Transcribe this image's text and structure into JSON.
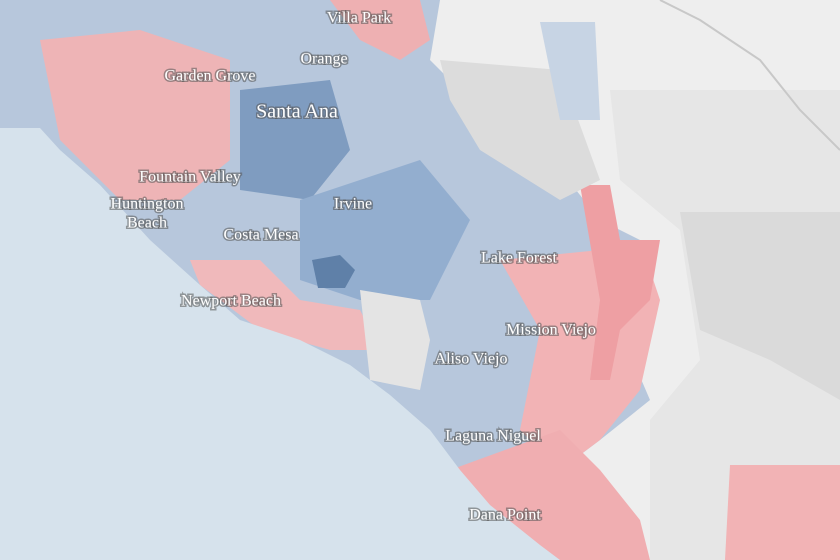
{
  "map": {
    "labels": [
      {
        "text": "Villa Park"
      },
      {
        "text": "Orange"
      },
      {
        "text": "Garden Grove"
      },
      {
        "text": "Santa Ana"
      },
      {
        "text": "Fountain Valley"
      },
      {
        "lines": [
          "Huntington",
          "Beach"
        ]
      },
      {
        "text": "Irvine"
      },
      {
        "text": "Costa Mesa"
      },
      {
        "text": "Lake Forest"
      },
      {
        "text": "Newport Beach"
      },
      {
        "text": "Mission Viejo"
      },
      {
        "text": "Aliso Viejo"
      },
      {
        "text": "Laguna Niguel"
      },
      {
        "text": "Dana Point"
      }
    ]
  }
}
